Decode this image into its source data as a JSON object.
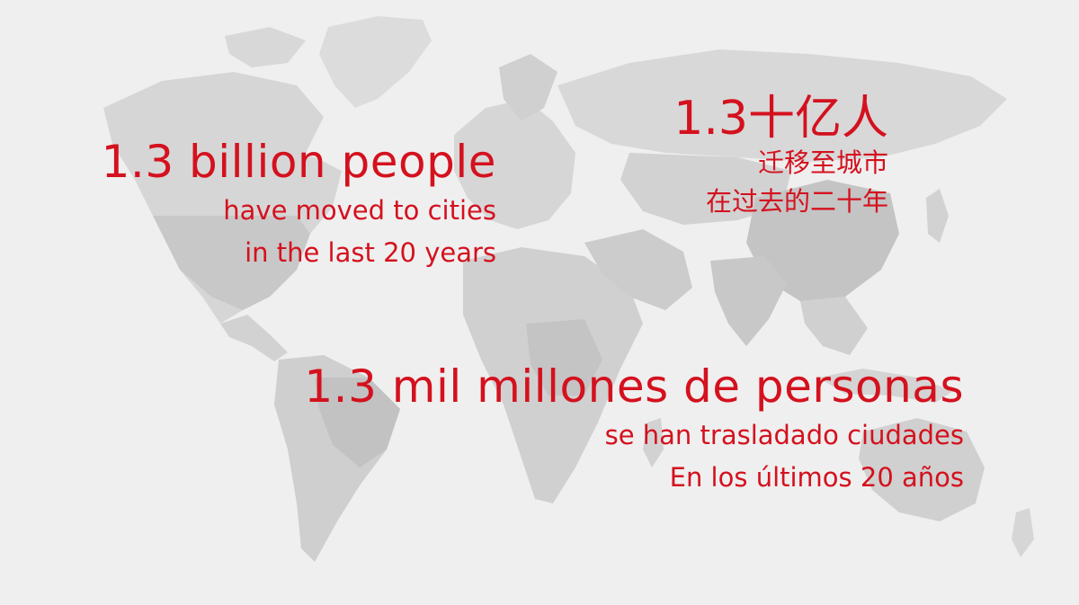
{
  "colors": {
    "background": "#efefef",
    "text_accent": "#d4111e",
    "land_light": "#dcdcdc",
    "land_mid": "#cecece",
    "land_dark": "#bebebe"
  },
  "background_map": {
    "icon": "world-map-icon"
  },
  "english": {
    "headline": "1.3 billion people",
    "line1": "have moved to cities",
    "line2": "in the last 20 years"
  },
  "chinese": {
    "headline": "1.3十亿人",
    "line1": "迁移至城市",
    "line2": "在过去的二十年"
  },
  "spanish": {
    "headline": "1.3 mil millones de personas",
    "line1": "se han trasladado ciudades",
    "line2": "En los últimos 20 años"
  }
}
